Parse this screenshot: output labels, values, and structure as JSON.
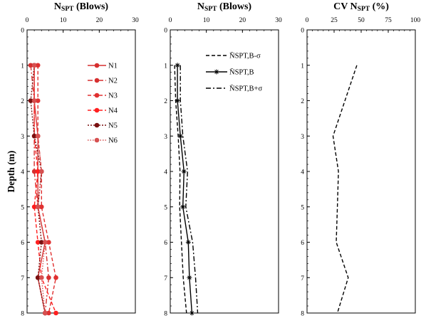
{
  "chart_data": [
    {
      "type": "line",
      "title": "Nₛₚₜ (Blows)",
      "title_main": "N",
      "title_sub": "SPT",
      "title_rest": " (Blows)",
      "ylabel": "Depth (m)",
      "x_axis_position": "top",
      "xlim": [
        0,
        30
      ],
      "xticks": [
        "0",
        "10",
        "20",
        "30"
      ],
      "ylim": [
        0,
        8
      ],
      "yticks": [
        "0",
        "1",
        "2",
        "3",
        "4",
        "5",
        "6",
        "7",
        "8"
      ],
      "y_inverted": true,
      "grid": false,
      "legend_placement": "top-right",
      "series": [
        {
          "name": "N1",
          "color": "#d62f2f",
          "dash": "solid",
          "marker": "circle",
          "x": [
            1,
            2,
            3,
            4,
            5,
            6,
            7,
            8
          ],
          "y": [
            1,
            2,
            3,
            4,
            5,
            6,
            7,
            8
          ],
          "values": [
            2,
            2,
            3,
            3,
            3,
            5,
            3,
            5
          ],
          "_comment": "values are N at depths"
        },
        {
          "name": "N2",
          "color": "#d62f2f",
          "dash": "dashdot",
          "marker": "circle",
          "values": [
            1,
            2,
            2,
            2,
            3,
            5,
            6,
            5
          ]
        },
        {
          "name": "N3",
          "color": "#e03030",
          "dash": "dash",
          "marker": "circle",
          "values": [
            3,
            3,
            3,
            4,
            4,
            6,
            8,
            6
          ]
        },
        {
          "name": "N4",
          "color": "#ff1f1f",
          "dash": "dash",
          "marker": "circle",
          "values": [
            2,
            2,
            2,
            3,
            2,
            3,
            4,
            8
          ]
        },
        {
          "name": "N5",
          "color": "#7a1010",
          "dash": "dot",
          "marker": "circle",
          "values": [
            2,
            1,
            2,
            4,
            3,
            4,
            3,
            5
          ]
        },
        {
          "name": "N6",
          "color": "#d65050",
          "dash": "dotted",
          "marker": "circle",
          "values": [
            2,
            2,
            3,
            4,
            3,
            5,
            4,
            5
          ]
        }
      ]
    },
    {
      "type": "line",
      "title": "Nₛₚₜ (Blows)",
      "title_main": "N",
      "title_sub": "SPT",
      "title_rest": " (Blows)",
      "x_axis_position": "top",
      "xlim": [
        0,
        30
      ],
      "xticks": [
        "0",
        "10",
        "20",
        "30"
      ],
      "ylim": [
        0,
        8
      ],
      "yticks": [
        "0",
        "1",
        "2",
        "3",
        "4",
        "5",
        "6",
        "7",
        "8"
      ],
      "y_inverted": true,
      "grid": false,
      "legend_placement": "top-right",
      "series": [
        {
          "name": "N̄SPT,B-σ",
          "color": "#000000",
          "dash": "dash",
          "marker": "none",
          "values": [
            1.2,
            1.5,
            2.2,
            2.7,
            2.6,
            3.1,
            3.6,
            4.5
          ]
        },
        {
          "name": "N̄SPT,B",
          "color": "#000000",
          "dash": "solid",
          "marker": "star",
          "values": [
            2.0,
            2.0,
            2.8,
            3.8,
            3.5,
            5.0,
            5.3,
            6.0
          ]
        },
        {
          "name": "N̄SPT,B+σ",
          "color": "#000000",
          "dash": "dashdot",
          "marker": "none",
          "values": [
            2.8,
            2.8,
            3.5,
            4.8,
            4.3,
            6.2,
            7.0,
            7.6
          ]
        }
      ]
    },
    {
      "type": "line",
      "title": "CV Nₛₚₜ (%)",
      "title_main": "CV N",
      "title_sub": "SPT",
      "title_rest": " (%)",
      "x_axis_position": "top",
      "xlim": [
        0,
        100
      ],
      "xticks": [
        "0",
        "25",
        "50",
        "75",
        "100"
      ],
      "ylim": [
        0,
        8
      ],
      "yticks": [
        "0",
        "1",
        "2",
        "3",
        "4",
        "5",
        "6",
        "7",
        "8"
      ],
      "y_inverted": true,
      "grid": false,
      "series": [
        {
          "color": "#000000",
          "dash": "dash",
          "marker": "none",
          "values": [
            46,
            35,
            24,
            29,
            28,
            27,
            38,
            28
          ]
        }
      ]
    }
  ]
}
